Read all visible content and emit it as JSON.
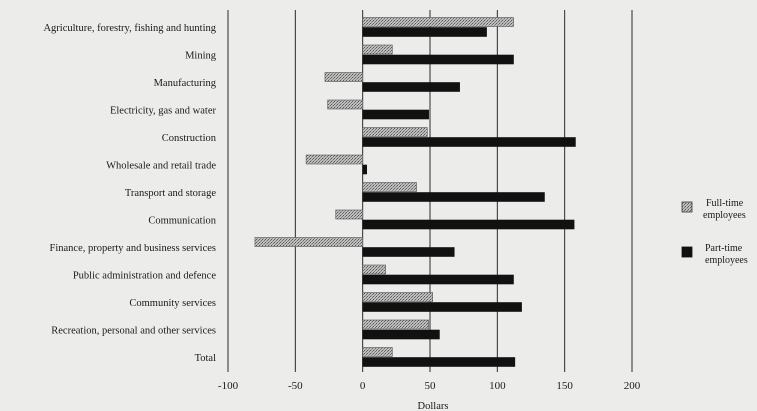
{
  "chart_data": {
    "type": "bar",
    "orientation": "horizontal",
    "categories": [
      "Agriculture, forestry, fishing and hunting",
      "Mining",
      "Manufacturing",
      "Electricity, gas and water",
      "Construction",
      "Wholesale and retail trade",
      "Transport and storage",
      "Communication",
      "Finance, property and business services",
      "Public administration and defence",
      "Community services",
      "Recreation, personal and other services",
      "Total"
    ],
    "series": [
      {
        "name": "Full-time employees",
        "color": "#b8b8b8",
        "pattern": "stippled",
        "values": [
          112,
          22,
          -28,
          -26,
          48,
          -42,
          40,
          -20,
          -80,
          17,
          52,
          49,
          22
        ]
      },
      {
        "name": "Part-time employees",
        "color": "#111111",
        "values": [
          92,
          112,
          72,
          49,
          158,
          3,
          135,
          157,
          68,
          112,
          118,
          57,
          113
        ]
      }
    ],
    "xlabel": "Dollars",
    "ylabel": "",
    "xlim": [
      -100,
      200
    ],
    "xticks": [
      "-100",
      "-50",
      "0",
      "50",
      "100",
      "150",
      "200"
    ],
    "grid": "vertical lines at major ticks",
    "legend": {
      "placement": "right",
      "entries": [
        [
          "Full-time",
          "employees"
        ],
        [
          "Part-time",
          "employees"
        ]
      ]
    }
  }
}
